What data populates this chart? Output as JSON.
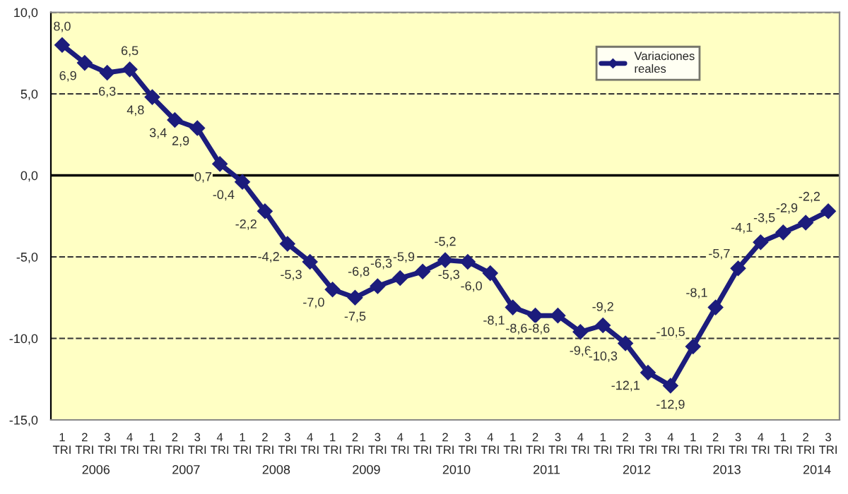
{
  "chart_data": {
    "type": "line",
    "categories": [
      "1\nTRI",
      "2\nTRI",
      "3\nTRI",
      "4\nTRI",
      "1\nTRI",
      "2\nTRI",
      "3\nTRI",
      "4\nTRI",
      "1\nTRI",
      "2\nTRI",
      "3\nTRI",
      "4\nTRI",
      "1\nTRI",
      "2\nTRI",
      "3\nTRI",
      "4\nTRI",
      "1\nTRI",
      "2\nTRI",
      "3\nTRI",
      "4\nTRI",
      "1\nTRI",
      "2\nTRI",
      "3\nTRI",
      "4\nTRI",
      "1\nTRI",
      "2\nTRI",
      "3\nTRI",
      "4\nTRI",
      "1\nTRI",
      "2\nTRI",
      "3\nTRI",
      "4\nTRI",
      "1\nTRI",
      "2\nTRI",
      "3\nTRI"
    ],
    "series": [
      {
        "name": "Variaciones\nreales",
        "color": "#1c1c7c",
        "values": [
          8.0,
          6.9,
          6.3,
          6.5,
          4.8,
          3.4,
          2.9,
          0.7,
          -0.4,
          -2.2,
          -4.2,
          -5.3,
          -7.0,
          -7.5,
          -6.8,
          -6.3,
          -5.9,
          -5.2,
          -5.3,
          -6.0,
          -8.1,
          -8.6,
          -8.6,
          -9.6,
          -9.2,
          -10.3,
          -12.1,
          -12.9,
          -10.5,
          -8.1,
          -5.7,
          -4.1,
          -3.5,
          -2.9,
          -2.2
        ],
        "value_labels": [
          "8,0",
          "6,9",
          "6,3",
          "6,5",
          "4,8",
          "3,4",
          "2,9",
          "0,7",
          "-0,4",
          "-2,2",
          "-4,2",
          "-5,3",
          "-7,0",
          "-7,5",
          "-6,8",
          "-6,3",
          "-5,9",
          "-5,2",
          "-5,3",
          "-6,0",
          "-8,1",
          "-8,6",
          "-8,6",
          "-9,6",
          "-9,2",
          "-10,3",
          "-12,1",
          "-12,9",
          "-10,5",
          "-8,1",
          "-5,7",
          "-4,1",
          "-3,5",
          "-2,9",
          "-2,2"
        ]
      }
    ],
    "annotations": [
      "2006",
      "2007",
      "2008",
      "2009",
      "2010",
      "2011",
      "2012",
      "2013",
      "2014"
    ],
    "ylim": [
      -15,
      10
    ],
    "yticks": [
      {
        "value": -15,
        "label": "-15,0"
      },
      {
        "value": -10,
        "label": "-10,0"
      },
      {
        "value": -5,
        "label": "-5,0"
      },
      {
        "value": 0,
        "label": "0,0"
      },
      {
        "value": 5,
        "label": "5,0"
      },
      {
        "value": 10,
        "label": "10,0"
      }
    ],
    "ref_lines": [
      {
        "axis": "y",
        "value": 0,
        "color": "#000000",
        "line_style": "solid"
      }
    ],
    "grid": "y",
    "legend": "top right",
    "marker": "diamond",
    "line_style": "solid"
  }
}
